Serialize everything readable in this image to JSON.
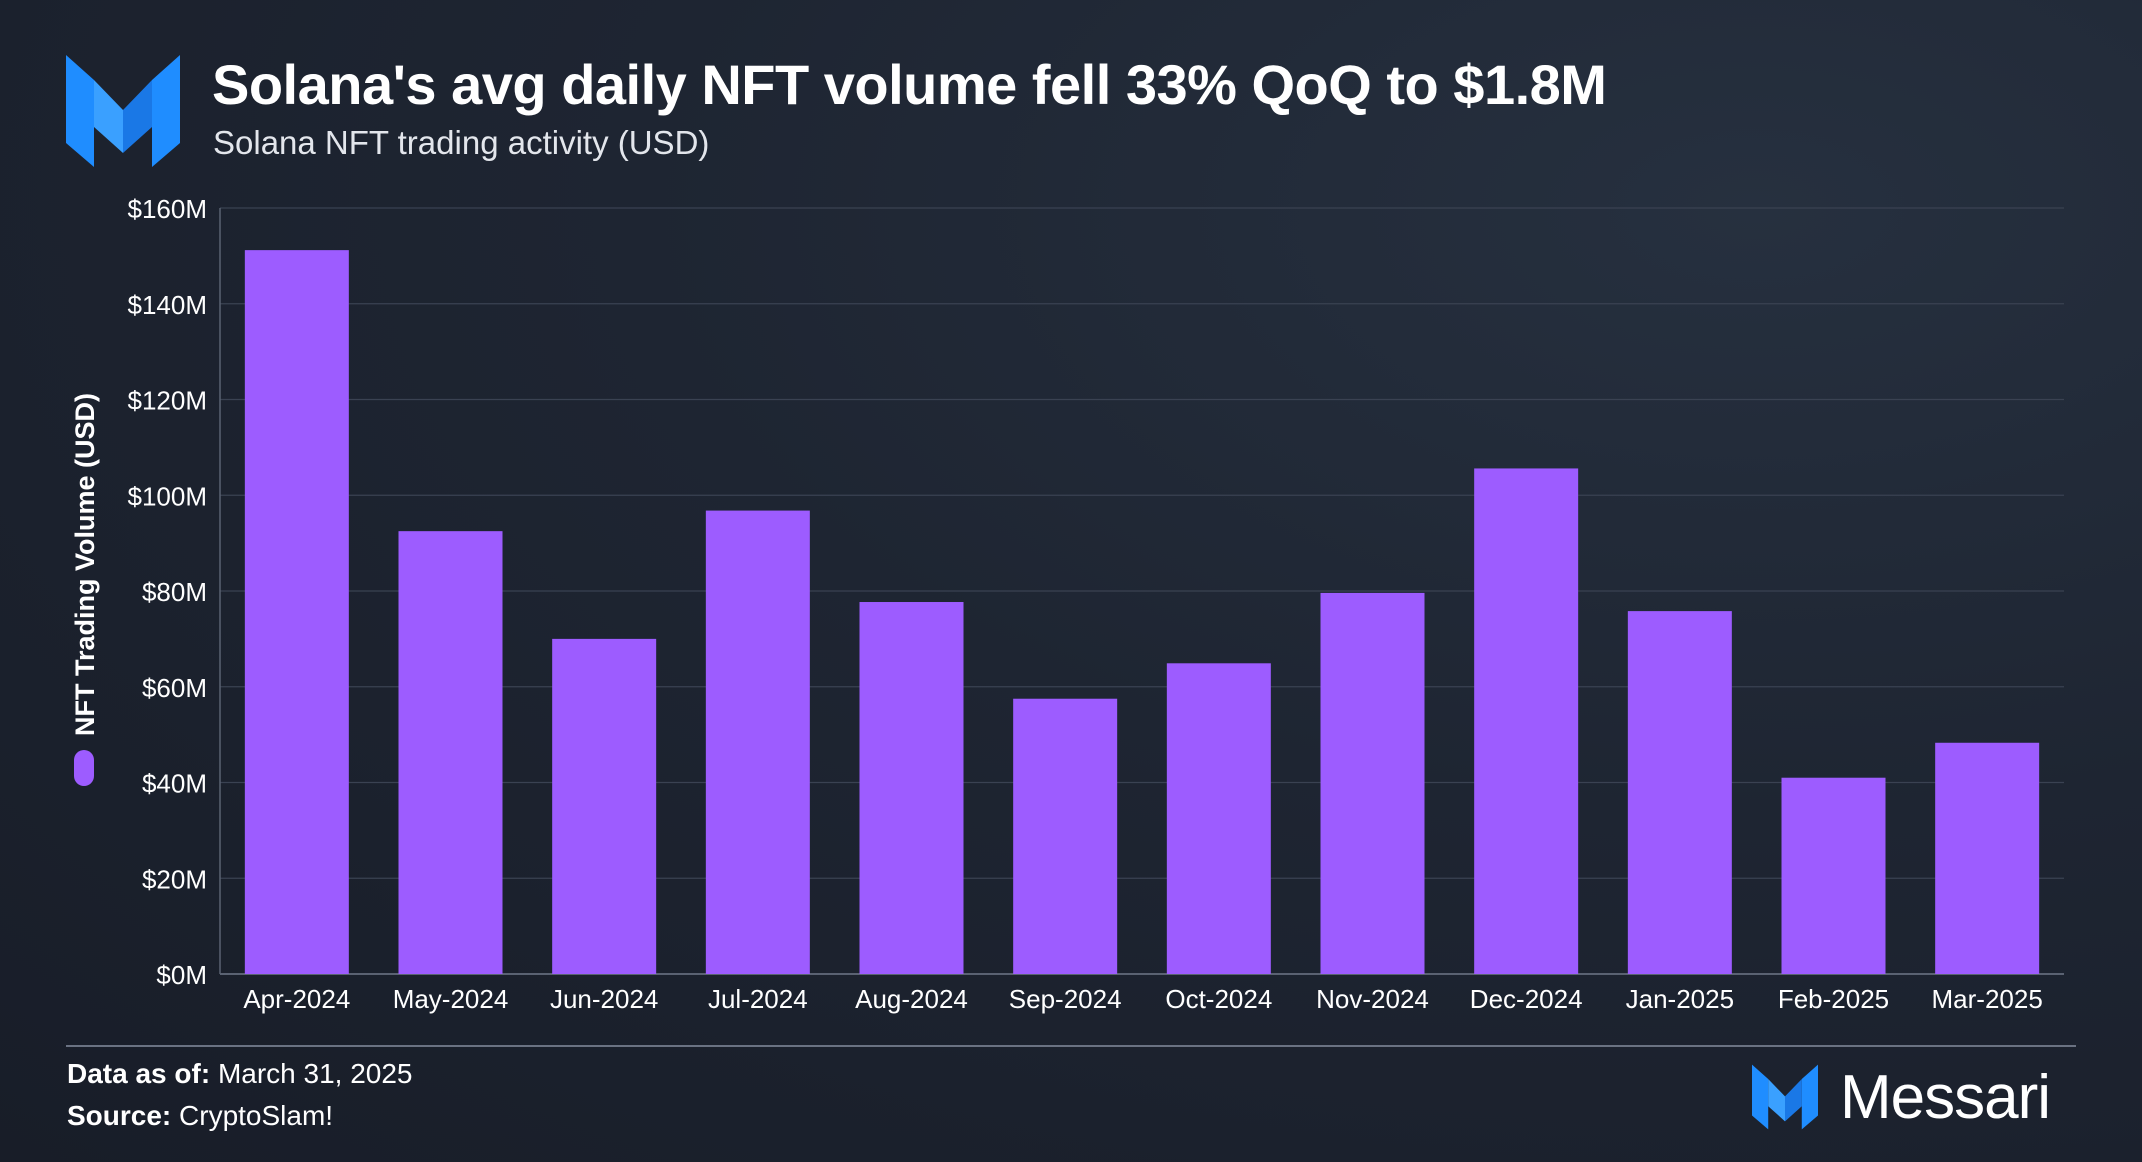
{
  "header": {
    "title": "Solana's avg daily NFT volume fell 33% QoQ to $1.8M",
    "subtitle": "Solana NFT trading activity (USD)",
    "logo_icon": "messari-m-icon"
  },
  "footer": {
    "data_as_of_label": "Data as of:",
    "data_as_of_value": "March 31, 2025",
    "source_label": "Source:",
    "source_value": "CryptoSlam!",
    "brand_name": "Messari"
  },
  "colors": {
    "background": "#1b2230",
    "bar": "#9d5cff",
    "logo_blue": "#1f8dff",
    "grid": "#3a4252",
    "axis_text": "#ffffff"
  },
  "chart_data": {
    "type": "bar",
    "title": "Solana's avg daily NFT volume fell 33% QoQ to $1.8M",
    "subtitle": "Solana NFT trading activity (USD)",
    "xlabel": "",
    "ylabel": "NFT Trading Volume (USD)",
    "ylim": [
      0,
      160
    ],
    "y_ticks": [
      0,
      20,
      40,
      60,
      80,
      100,
      120,
      140,
      160
    ],
    "y_tick_labels": [
      "$0M",
      "$20M",
      "$40M",
      "$60M",
      "$80M",
      "$100M",
      "$120M",
      "$140M",
      "$160M"
    ],
    "grid": true,
    "legend": "left-vertical",
    "categories": [
      "Apr-2024",
      "May-2024",
      "Jun-2024",
      "Jul-2024",
      "Aug-2024",
      "Sep-2024",
      "Oct-2024",
      "Nov-2024",
      "Dec-2024",
      "Jan-2025",
      "Feb-2025",
      "Mar-2025"
    ],
    "series": [
      {
        "name": "NFT Trading Volume (USD)",
        "unit": "USD millions",
        "values": [
          151.2,
          92.5,
          70.0,
          96.8,
          77.7,
          57.5,
          64.9,
          79.6,
          105.6,
          75.8,
          41.0,
          48.3
        ]
      }
    ]
  }
}
